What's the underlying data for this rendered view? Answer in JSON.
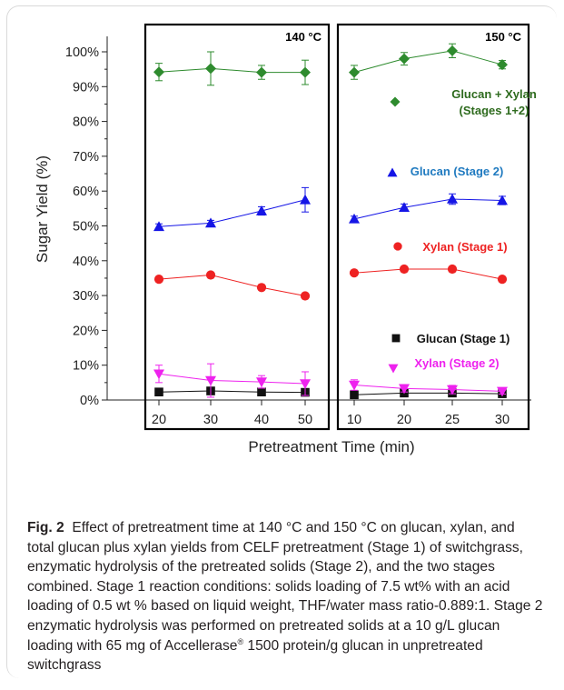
{
  "figure": {
    "label": "Fig. 2",
    "caption_text": "Effect of pretreatment time at 140 °C and 150 °C on glucan, xylan, and total glucan plus xylan yields from CELF pretreatment (Stage 1) of switchgrass, enzymatic hydrolysis of the pretreated solids (Stage 2), and the two stages combined. Stage 1 reaction conditions: solids loading of 7.5 wt% with an acid loading of 0.5 wt % based on liquid weight, THF/water mass ratio-0.889:1. Stage 2 enzymatic hydrolysis was performed on pretreated solids at a 10 g/L glucan loading with 65 mg of Accellerase",
    "caption_trademark": "®",
    "caption_tail": " 1500 protein/g glucan in unpretreated switchgrass"
  },
  "chart_data": {
    "type": "scatter",
    "ylabel": "Sugar Yield (%)",
    "xlabel": "Pretreatment Time (min)",
    "ylim": [
      0,
      105
    ],
    "yticks": [
      "0%",
      "10%",
      "20%",
      "30%",
      "40%",
      "50%",
      "60%",
      "70%",
      "80%",
      "90%",
      "100%"
    ],
    "grid": false,
    "panels": [
      {
        "title": "140 °C",
        "x": [
          20,
          30,
          40,
          50
        ],
        "tick_labels": [
          "20",
          "30",
          "40",
          "50"
        ]
      },
      {
        "title": "150 °C",
        "x": [
          10,
          20,
          25,
          30
        ],
        "tick_labels": [
          "10",
          "20",
          "25",
          "30"
        ]
      }
    ],
    "series": [
      {
        "name": "Glucan + Xylan\n(Stages 1+2)",
        "color": "#2e8b2e",
        "marker": "diamond",
        "values": [
          [
            94.2,
            95.2,
            94.1,
            94.1
          ],
          [
            94.1,
            98.0,
            100.3,
            96.3
          ]
        ],
        "errors": [
          [
            2.5,
            4.8,
            2.0,
            3.5
          ],
          [
            2.0,
            1.8,
            2.0,
            1.2
          ]
        ]
      },
      {
        "name": "Glucan (Stage 2)",
        "color": "#1515e6",
        "marker": "triangle",
        "values": [
          [
            49.8,
            50.8,
            54.3,
            57.5
          ],
          [
            52.0,
            55.3,
            57.7,
            57.3
          ]
        ],
        "errors": [
          [
            0.8,
            0.8,
            1.2,
            3.5
          ],
          [
            0.8,
            1.0,
            1.5,
            1.2
          ]
        ]
      },
      {
        "name": "Xylan (Stage 1)",
        "color": "#ee2222",
        "marker": "circle",
        "values": [
          [
            34.7,
            35.9,
            32.3,
            29.9
          ],
          [
            36.5,
            37.6,
            37.6,
            34.7
          ]
        ],
        "errors": [
          [
            0,
            0,
            0,
            0
          ],
          [
            0,
            0,
            0,
            0
          ]
        ]
      },
      {
        "name": "Glucan (Stage 1)",
        "color": "#111111",
        "marker": "square",
        "values": [
          [
            2.3,
            2.6,
            2.3,
            2.2
          ],
          [
            1.5,
            2.0,
            2.0,
            1.8
          ]
        ],
        "errors": [
          [
            0,
            0,
            0,
            0
          ],
          [
            0,
            0,
            0,
            0
          ]
        ]
      },
      {
        "name": "Xylan (Stage 2)",
        "color": "#ee22ee",
        "marker": "triangle-down",
        "values": [
          [
            7.5,
            5.6,
            5.2,
            4.7
          ],
          [
            4.3,
            3.3,
            3.0,
            2.5
          ]
        ],
        "errors": [
          [
            2.5,
            4.8,
            1.8,
            3.4
          ],
          [
            1.5,
            1.0,
            1.2,
            0.8
          ]
        ]
      }
    ],
    "legend_labels": [
      {
        "series": 0,
        "text": "Glucan + Xylan\n(Stages 1+2)",
        "color": "#2e6b1e"
      },
      {
        "series": 1,
        "text": "Glucan (Stage 2)",
        "color": "#1f7ac0"
      },
      {
        "series": 2,
        "text": "Xylan (Stage 1)",
        "color": "#ee2222"
      },
      {
        "series": 3,
        "text": "Glucan (Stage 1)",
        "color": "#111111"
      },
      {
        "series": 4,
        "text": "Xylan (Stage 2)",
        "color": "#ee22ee"
      }
    ]
  }
}
